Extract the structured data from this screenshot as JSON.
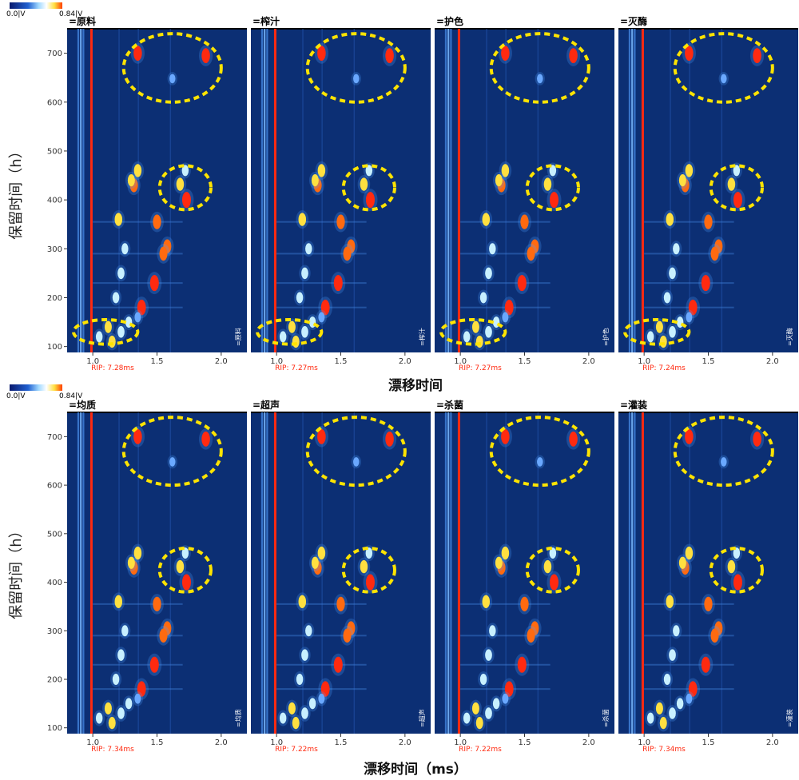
{
  "colorbar": {
    "min_label": "0.0|V",
    "max_label": "0.84|V",
    "colors": [
      "#0a1a6e",
      "#2060d0",
      "#a0d8ff",
      "#ffffff",
      "#ffe040",
      "#ff4000"
    ]
  },
  "axis_titles": {
    "y_label": "保留时间（h）",
    "x_label_top": "漂移时间",
    "x_label_bottom": "漂移时间（ms）"
  },
  "chart_data": {
    "type": "heatmap",
    "x_ticks": [
      1.0,
      1.5,
      2.0
    ],
    "y_ticks": [
      100,
      200,
      300,
      400,
      500,
      600,
      700
    ],
    "xlim": [
      0.8,
      2.2
    ],
    "ylim": [
      88,
      750
    ],
    "panel_bg": "#0c2f74",
    "rows": [
      {
        "panels": [
          {
            "name": "=原料",
            "side_label": "=原料",
            "rip": "RIP: 7.28ms"
          },
          {
            "name": "=榨汁",
            "side_label": "=榨汁",
            "rip": "RIP: 7.27ms"
          },
          {
            "name": "=护色",
            "side_label": "=护色",
            "rip": "RIP: 7.27ms"
          },
          {
            "name": "=灭酶",
            "side_label": "=灭酶",
            "rip": "RIP: 7.24ms"
          }
        ]
      },
      {
        "panels": [
          {
            "name": "=均质",
            "side_label": "=均质",
            "rip": "RIP: 7.34ms"
          },
          {
            "name": "=超声",
            "side_label": "=超声",
            "rip": "RIP: 7.22ms"
          },
          {
            "name": "=杀菌",
            "side_label": "=杀菌",
            "rip": "RIP: 7.22ms"
          },
          {
            "name": "=灌装",
            "side_label": "=灌装",
            "rip": "RIP: 7.34ms"
          }
        ]
      }
    ],
    "peaks": [
      {
        "x": 1.35,
        "y": 700,
        "i": 0.9
      },
      {
        "x": 1.88,
        "y": 695,
        "i": 0.9
      },
      {
        "x": 1.62,
        "y": 648,
        "i": 0.3
      },
      {
        "x": 1.73,
        "y": 400,
        "i": 1.0
      },
      {
        "x": 1.68,
        "y": 432,
        "i": 0.7
      },
      {
        "x": 1.72,
        "y": 460,
        "i": 0.5
      },
      {
        "x": 1.32,
        "y": 430,
        "i": 0.8
      },
      {
        "x": 1.35,
        "y": 460,
        "i": 0.7
      },
      {
        "x": 1.3,
        "y": 440,
        "i": 0.6
      },
      {
        "x": 1.2,
        "y": 360,
        "i": 0.7
      },
      {
        "x": 1.5,
        "y": 355,
        "i": 0.85
      },
      {
        "x": 1.58,
        "y": 305,
        "i": 0.8
      },
      {
        "x": 1.55,
        "y": 290,
        "i": 0.8
      },
      {
        "x": 1.48,
        "y": 230,
        "i": 1.0
      },
      {
        "x": 1.38,
        "y": 180,
        "i": 0.95
      },
      {
        "x": 1.25,
        "y": 300,
        "i": 0.5
      },
      {
        "x": 1.22,
        "y": 250,
        "i": 0.55
      },
      {
        "x": 1.18,
        "y": 200,
        "i": 0.5
      },
      {
        "x": 1.12,
        "y": 140,
        "i": 0.6
      },
      {
        "x": 1.05,
        "y": 120,
        "i": 0.5
      },
      {
        "x": 1.15,
        "y": 110,
        "i": 0.6
      },
      {
        "x": 1.22,
        "y": 130,
        "i": 0.55
      },
      {
        "x": 1.28,
        "y": 150,
        "i": 0.5
      },
      {
        "x": 1.35,
        "y": 160,
        "i": 0.4
      }
    ],
    "circles": [
      {
        "cx": 1.62,
        "cy": 670,
        "rx": 0.38,
        "ry": 70
      },
      {
        "cx": 1.72,
        "cy": 425,
        "rx": 0.2,
        "ry": 45
      },
      {
        "cx": 1.1,
        "cy": 130,
        "rx": 0.25,
        "ry": 25
      }
    ]
  }
}
